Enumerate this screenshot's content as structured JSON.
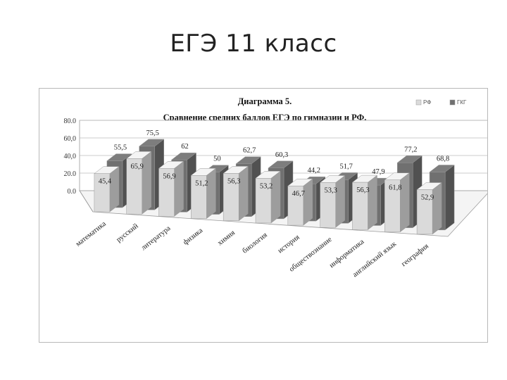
{
  "slide": {
    "title": "ЕГЭ  11 класс"
  },
  "chart_data": {
    "type": "bar",
    "title": "Диаграмма 5.",
    "subtitle": "Сравнение средних баллов ЕГЭ по гимназии и РФ.",
    "categories": [
      "математика",
      "русский",
      "литература",
      "физика",
      "химия",
      "биология",
      "история",
      "обществознание",
      "информатика",
      "английский язык",
      "география"
    ],
    "series": [
      {
        "name": "РФ",
        "color": "#dadada",
        "values": [
          45.4,
          65.9,
          56.9,
          51.2,
          56.3,
          53.2,
          46.7,
          53.3,
          56.3,
          61.8,
          52.9
        ]
      },
      {
        "name": "ГКГ",
        "color": "#707070",
        "values": [
          55.5,
          75.5,
          62,
          50,
          62.7,
          60.3,
          44.2,
          51.7,
          47.9,
          77.2,
          68.8
        ]
      }
    ],
    "value_labels": {
      "РФ": [
        "45,4",
        "65,9",
        "56,9",
        "51,2",
        "56,3",
        "53,2",
        "46,7",
        "53,3",
        "56,3",
        "61,8",
        "52,9"
      ],
      "ГКГ": [
        "55,5",
        "75,5",
        "62",
        "50",
        "62,7",
        "60,3",
        "44,2",
        "51,7",
        "47,9",
        "77,2",
        "68,8"
      ]
    },
    "yticks": [
      "0.0",
      "20.0",
      "40,0",
      "60,0",
      "80.0"
    ],
    "ylim": [
      0,
      80
    ],
    "grid": true,
    "legend_position": "top-right"
  }
}
